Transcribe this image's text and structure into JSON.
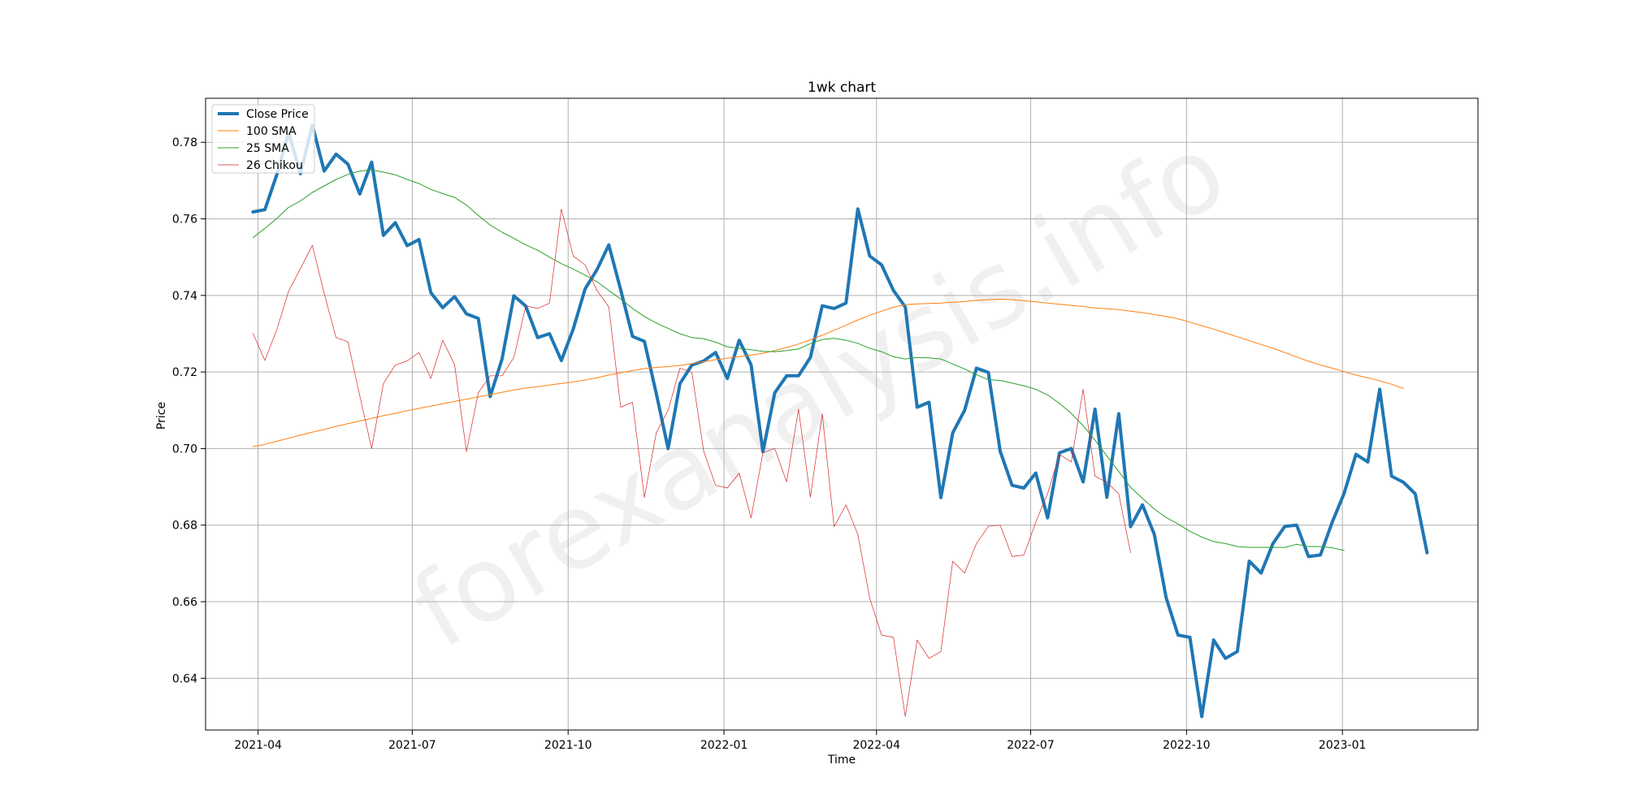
{
  "chart_data": {
    "type": "line",
    "title": "1wk chart",
    "xlabel": "Time",
    "ylabel": "Price",
    "watermark": "forexanalysis.info",
    "xlim": [
      "2021-03-01",
      "2023-03-22"
    ],
    "ylim": [
      0.6265,
      0.7915
    ],
    "grid": true,
    "legend_position": "top-left",
    "x_ticks": [
      {
        "date": "2021-04-01",
        "label": "2021-04"
      },
      {
        "date": "2021-07-01",
        "label": "2021-07"
      },
      {
        "date": "2021-10-01",
        "label": "2021-10"
      },
      {
        "date": "2022-01-01",
        "label": "2022-01"
      },
      {
        "date": "2022-04-01",
        "label": "2022-04"
      },
      {
        "date": "2022-07-01",
        "label": "2022-07"
      },
      {
        "date": "2022-10-01",
        "label": "2022-10"
      },
      {
        "date": "2023-01-01",
        "label": "2023-01"
      }
    ],
    "y_ticks": [
      {
        "value": 0.64,
        "label": "0.64"
      },
      {
        "value": 0.66,
        "label": "0.66"
      },
      {
        "value": 0.68,
        "label": "0.68"
      },
      {
        "value": 0.7,
        "label": "0.70"
      },
      {
        "value": 0.72,
        "label": "0.72"
      },
      {
        "value": 0.74,
        "label": "0.74"
      },
      {
        "value": 0.76,
        "label": "0.76"
      },
      {
        "value": 0.78,
        "label": "0.78"
      }
    ],
    "series": [
      {
        "name": "Close Price",
        "color": "#1f77b4",
        "width": 4,
        "start_date": "2021-03-29",
        "interval_days": 7,
        "values": [
          0.7618,
          0.7624,
          0.7715,
          0.7825,
          0.7718,
          0.7845,
          0.7725,
          0.7769,
          0.7743,
          0.7665,
          0.7748,
          0.7557,
          0.759,
          0.753,
          0.7546,
          0.7407,
          0.7368,
          0.7397,
          0.7352,
          0.734,
          0.7136,
          0.7234,
          0.7399,
          0.7372,
          0.729,
          0.73,
          0.723,
          0.7312,
          0.7417,
          0.7467,
          0.7532,
          0.7415,
          0.7293,
          0.728,
          0.7144,
          0.7,
          0.717,
          0.7218,
          0.7229,
          0.7251,
          0.7183,
          0.7283,
          0.7219,
          0.6992,
          0.7146,
          0.719,
          0.719,
          0.7238,
          0.7373,
          0.7366,
          0.738,
          0.7626,
          0.7503,
          0.748,
          0.7413,
          0.737,
          0.7108,
          0.7121,
          0.6872,
          0.7041,
          0.71,
          0.721,
          0.7199,
          0.6993,
          0.6904,
          0.6897,
          0.6936,
          0.6819,
          0.6989,
          0.7,
          0.6913,
          0.7103,
          0.6873,
          0.7091,
          0.6796,
          0.6853,
          0.6776,
          0.661,
          0.6513,
          0.6507,
          0.63,
          0.65,
          0.6452,
          0.647,
          0.6706,
          0.6675,
          0.6752,
          0.6797,
          0.68,
          0.6718,
          0.6722,
          0.6808,
          0.6883,
          0.6985,
          0.6965,
          0.7155,
          0.6928,
          0.6912,
          0.6882,
          0.6728
        ]
      },
      {
        "name": "100 SMA",
        "color": "#ff7f0e",
        "width": 1,
        "start_date": "2021-03-29",
        "interval_days": 7,
        "values": [
          0.7005,
          0.7011,
          0.7019,
          0.7027,
          0.7035,
          0.7043,
          0.705,
          0.7058,
          0.7065,
          0.7072,
          0.7079,
          0.7086,
          0.7092,
          0.7099,
          0.7105,
          0.7111,
          0.7117,
          0.7123,
          0.7129,
          0.7135,
          0.7141,
          0.7147,
          0.7153,
          0.7158,
          0.7162,
          0.7166,
          0.717,
          0.7174,
          0.7179,
          0.7185,
          0.7192,
          0.7198,
          0.7204,
          0.7209,
          0.7212,
          0.7214,
          0.7217,
          0.7222,
          0.7227,
          0.7232,
          0.7236,
          0.724,
          0.7244,
          0.7249,
          0.7256,
          0.7264,
          0.7273,
          0.7284,
          0.7296,
          0.7309,
          0.7322,
          0.7336,
          0.7348,
          0.7359,
          0.7369,
          0.7376,
          0.7378,
          0.7379,
          0.738,
          0.7382,
          0.7384,
          0.7387,
          0.7389,
          0.739,
          0.7389,
          0.7386,
          0.7383,
          0.738,
          0.7377,
          0.7374,
          0.7371,
          0.7367,
          0.7365,
          0.7363,
          0.7359,
          0.7355,
          0.735,
          0.7345,
          0.7339,
          0.733,
          0.7321,
          0.7312,
          0.7302,
          0.7292,
          0.7282,
          0.7272,
          0.7262,
          0.7251,
          0.7239,
          0.7228,
          0.7218,
          0.721,
          0.7201,
          0.7192,
          0.7185,
          0.7177,
          0.7168,
          0.7157
        ]
      },
      {
        "name": "25 SMA",
        "color": "#2ca02c",
        "width": 1,
        "start_date": "2021-03-29",
        "interval_days": 7,
        "values": [
          0.7551,
          0.7575,
          0.7601,
          0.763,
          0.7647,
          0.7669,
          0.7686,
          0.7703,
          0.7716,
          0.7725,
          0.7728,
          0.7722,
          0.7715,
          0.7703,
          0.7692,
          0.7677,
          0.7666,
          0.7656,
          0.7636,
          0.7609,
          0.7584,
          0.7565,
          0.7549,
          0.7532,
          0.7518,
          0.75,
          0.7483,
          0.7469,
          0.7453,
          0.7436,
          0.7413,
          0.7391,
          0.7366,
          0.7345,
          0.7328,
          0.7314,
          0.73,
          0.729,
          0.7287,
          0.7278,
          0.7266,
          0.7262,
          0.7258,
          0.7254,
          0.7253,
          0.7256,
          0.726,
          0.7274,
          0.7285,
          0.7288,
          0.7283,
          0.7275,
          0.7262,
          0.7253,
          0.724,
          0.7234,
          0.7238,
          0.7237,
          0.7234,
          0.7221,
          0.7208,
          0.7193,
          0.718,
          0.7178,
          0.7171,
          0.7164,
          0.7155,
          0.714,
          0.7118,
          0.7092,
          0.706,
          0.7022,
          0.6981,
          0.694,
          0.6899,
          0.687,
          0.6842,
          0.682,
          0.6803,
          0.6784,
          0.6769,
          0.6757,
          0.6752,
          0.6744,
          0.6742,
          0.6742,
          0.6742,
          0.6742,
          0.675,
          0.6744,
          0.6744,
          0.6741,
          0.6734
        ]
      },
      {
        "name": "26 Chikou",
        "color": "#d62728",
        "width": 0.7,
        "start_date": "2021-03-29",
        "interval_days": 7,
        "values": [
          0.7301,
          0.723,
          0.731,
          0.7411,
          0.747,
          0.7531,
          0.7405,
          0.729,
          0.7279,
          0.7138,
          0.7,
          0.717,
          0.7218,
          0.7229,
          0.7251,
          0.7183,
          0.7283,
          0.7219,
          0.6992,
          0.7146,
          0.719,
          0.719,
          0.7238,
          0.7373,
          0.7366,
          0.738,
          0.7626,
          0.7503,
          0.748,
          0.7413,
          0.737,
          0.7108,
          0.7121,
          0.6872,
          0.7041,
          0.71,
          0.721,
          0.7199,
          0.6993,
          0.6904,
          0.6897,
          0.6936,
          0.6819,
          0.6989,
          0.7,
          0.6913,
          0.7103,
          0.6873,
          0.7091,
          0.6796,
          0.6853,
          0.6776,
          0.661,
          0.6513,
          0.6507,
          0.63,
          0.65,
          0.6452,
          0.647,
          0.6706,
          0.6675,
          0.6752,
          0.6797,
          0.68,
          0.6718,
          0.6722,
          0.6808,
          0.6883,
          0.6985,
          0.6965,
          0.7155,
          0.6928,
          0.6912,
          0.6882,
          0.6728
        ]
      }
    ]
  }
}
